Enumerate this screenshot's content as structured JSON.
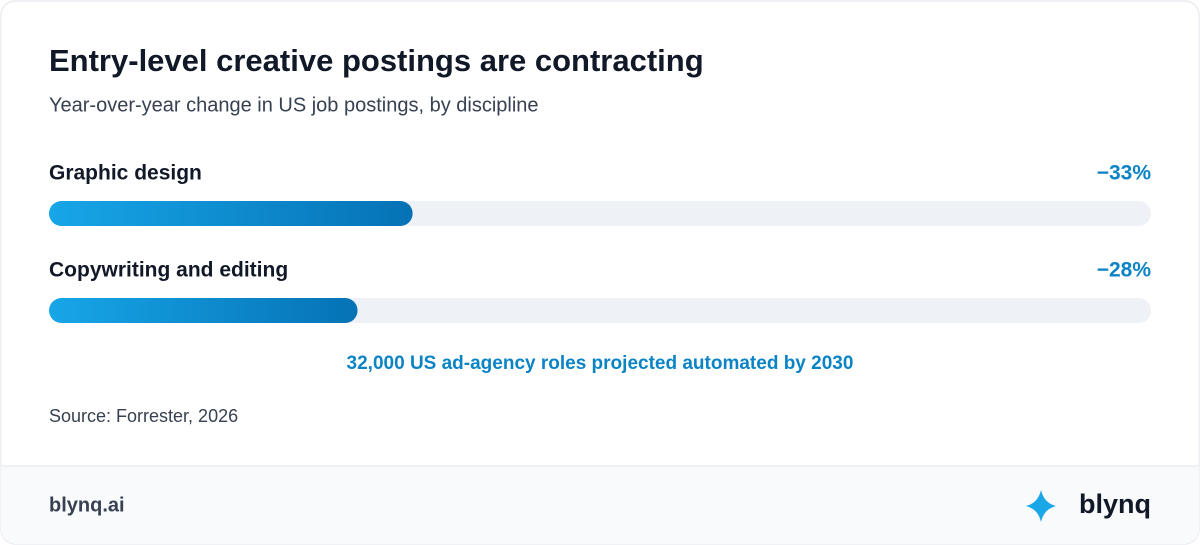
{
  "chart_data": {
    "type": "bar",
    "orientation": "horizontal",
    "title": "Entry-level creative postings are contracting",
    "subtitle": "Year-over-year change in US job postings, by discipline",
    "categories": [
      "Graphic design",
      "Copywriting and editing"
    ],
    "values": [
      -33,
      -28
    ],
    "value_labels": [
      "−33%",
      "−28%"
    ],
    "xlim": [
      0,
      -100
    ],
    "gradient": [
      "#17a6e8",
      "#0572b5"
    ],
    "track_color": "#eef1f5",
    "annotation": "32,000 US ad-agency roles projected automated by 2030",
    "source": "Source: Forrester, 2026"
  },
  "footer": {
    "site": "blynq.ai",
    "brand": "blynq"
  }
}
